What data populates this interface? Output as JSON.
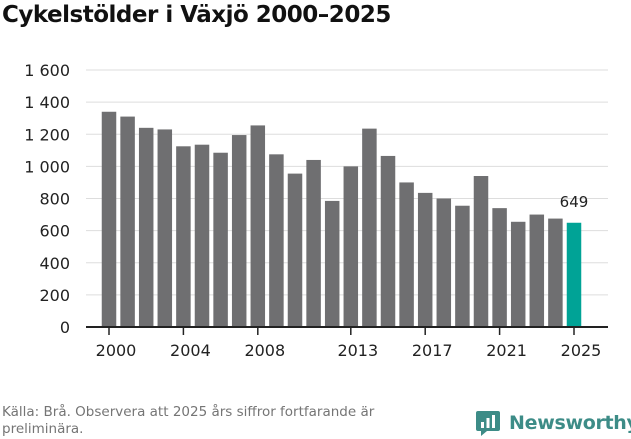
{
  "title": "Cykelstölder i Växjö 2000–2025",
  "source_note": "Källa: Brå. Observera att 2025 års siffror fortfarande är preliminära.",
  "brand": {
    "name": "Newsworthy",
    "icon": "newsworthy-chart-bubble-icon"
  },
  "colors": {
    "bar": "#6f6f71",
    "highlight": "#00a396",
    "brand": "#3d8c87",
    "grid": "#dddddd"
  },
  "chart_data": {
    "type": "bar",
    "categories": [
      "2000",
      "2001",
      "2002",
      "2003",
      "2004",
      "2005",
      "2006",
      "2007",
      "2008",
      "2009",
      "2010",
      "2011",
      "2012",
      "2013",
      "2014",
      "2015",
      "2016",
      "2017",
      "2018",
      "2019",
      "2020",
      "2021",
      "2022",
      "2023",
      "2024",
      "2025"
    ],
    "values": [
      1340,
      1310,
      1240,
      1230,
      1125,
      1135,
      1085,
      1195,
      1255,
      1075,
      955,
      1040,
      785,
      1000,
      1235,
      1065,
      900,
      835,
      800,
      755,
      940,
      740,
      655,
      700,
      675,
      649
    ],
    "highlight_index": 25,
    "highlight_label": "649",
    "xticks": [
      "2000",
      "2004",
      "2008",
      "2013",
      "2017",
      "2021",
      "2025"
    ],
    "yticks": [
      "0",
      "200",
      "400",
      "600",
      "800",
      "1 000",
      "1 200",
      "1 400",
      "1 600"
    ],
    "ylim": [
      0,
      1600
    ],
    "grid": true,
    "legend": false
  }
}
